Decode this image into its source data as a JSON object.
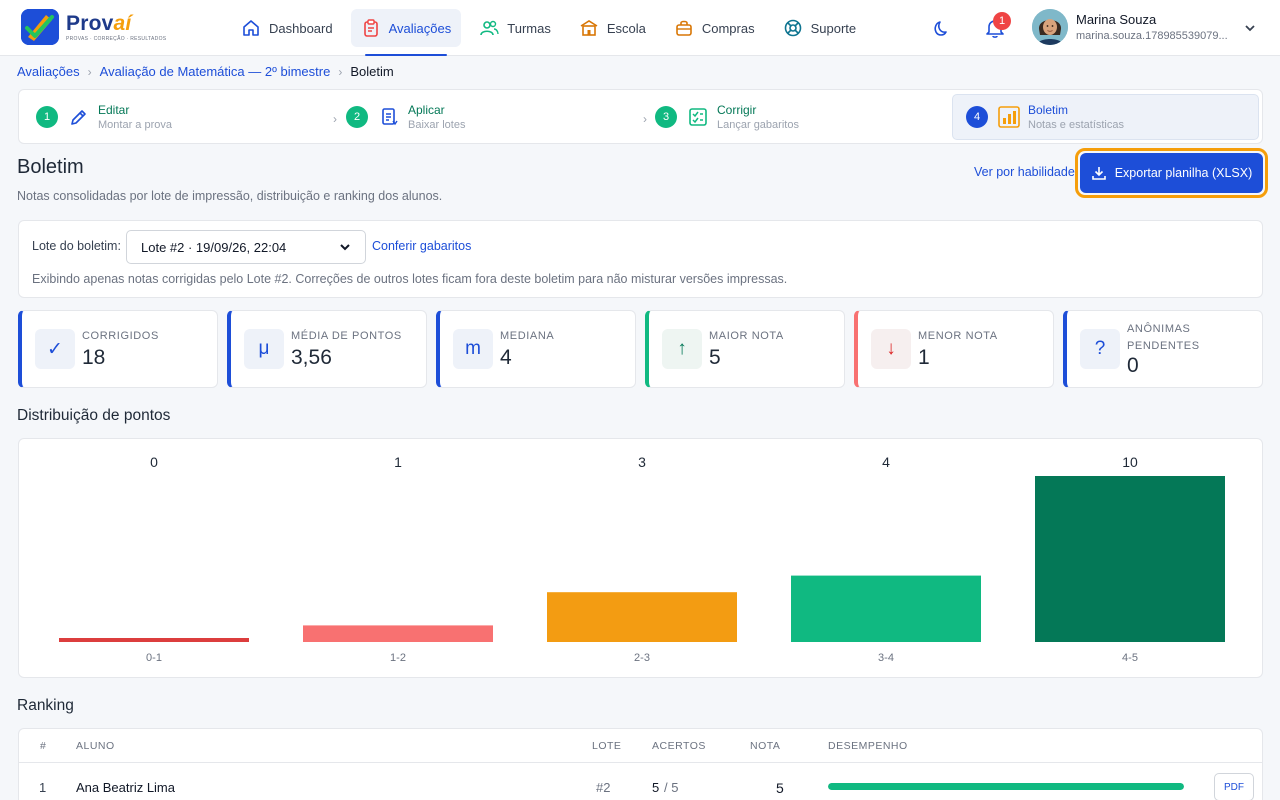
{
  "app": {
    "brand_main": "Prov",
    "brand_accent": "aí",
    "tagline": "PROVAS · CORREÇÃO · RESULTADOS"
  },
  "nav": [
    {
      "label": "Dashboard",
      "icon": "home-icon"
    },
    {
      "label": "Avaliações",
      "icon": "clipboard-icon",
      "active": true
    },
    {
      "label": "Turmas",
      "icon": "users-icon"
    },
    {
      "label": "Escola",
      "icon": "school-icon"
    },
    {
      "label": "Compras",
      "icon": "shopping-bag-icon"
    },
    {
      "label": "Suporte",
      "icon": "lifebuoy-icon"
    }
  ],
  "header": {
    "notifications_count": "1",
    "user_name": "Marina Souza",
    "user_email": "marina.souza.178985539079..."
  },
  "breadcrumb": {
    "root": "Avaliações",
    "exam": "Avaliação de Matemática — 2º bimestre",
    "current": "Boletim"
  },
  "steps": [
    {
      "num": "1",
      "title": "Editar",
      "sub": "Montar a prova"
    },
    {
      "num": "2",
      "title": "Aplicar",
      "sub": "Baixar lotes"
    },
    {
      "num": "3",
      "title": "Corrigir",
      "sub": "Lançar gabaritos"
    },
    {
      "num": "4",
      "title": "Boletim",
      "sub": "Notas e estatísticas"
    }
  ],
  "page": {
    "title": "Boletim",
    "subtitle": "Notas consolidadas por lote de impressão, distribuição e ranking dos alunos.",
    "skill_link": "Ver por habilidade",
    "export_label": "Exportar planilha (XLSX)"
  },
  "lote": {
    "label": "Lote do boletim:",
    "selected": "Lote #2 · 19/09/26, 22:04",
    "link": "Conferir gabaritos",
    "note": "Exibindo apenas notas corrigidas pelo Lote #2. Correções de outros lotes ficam fora deste boletim para não misturar versões impressas."
  },
  "stats": [
    {
      "icon": "✓",
      "label": "CORRIGIDOS",
      "value": "18"
    },
    {
      "icon": "μ",
      "label": "MÉDIA DE PONTOS",
      "value": "3,56"
    },
    {
      "icon": "m",
      "label": "MEDIANA",
      "value": "4"
    },
    {
      "icon": "↑",
      "label": "MAIOR NOTA",
      "value": "5"
    },
    {
      "icon": "↓",
      "label": "MENOR NOTA",
      "value": "1"
    },
    {
      "icon": "?",
      "label": "ANÔNIMAS PENDENTES",
      "value": "0"
    }
  ],
  "sections": {
    "distribution": "Distribuição de pontos",
    "ranking": "Ranking"
  },
  "chart_data": {
    "type": "bar",
    "categories": [
      "0-1",
      "1-2",
      "2-3",
      "3-4",
      "4-5"
    ],
    "values": [
      0,
      1,
      3,
      4,
      10
    ],
    "colors": [
      "#dc3d3d",
      "#f87171",
      "#f39c12",
      "#10b981",
      "#047857"
    ],
    "ylim": [
      0,
      10
    ],
    "grid": false,
    "legend": "none"
  },
  "ranking": {
    "columns": [
      "#",
      "ALUNO",
      "LOTE",
      "ACERTOS",
      "NOTA",
      "DESEMPENHO"
    ],
    "rows": [
      {
        "pos": "1",
        "name": "Ana Beatriz Lima",
        "lote": "#2",
        "hits": "5",
        "total": "/ 5",
        "grade": "5",
        "performance": 1.0,
        "action": "PDF"
      }
    ]
  },
  "colors": {
    "primary": "#1d4ed8",
    "success": "#10b981",
    "focus_ring": "#f59e0b",
    "danger": "#ef4444"
  }
}
